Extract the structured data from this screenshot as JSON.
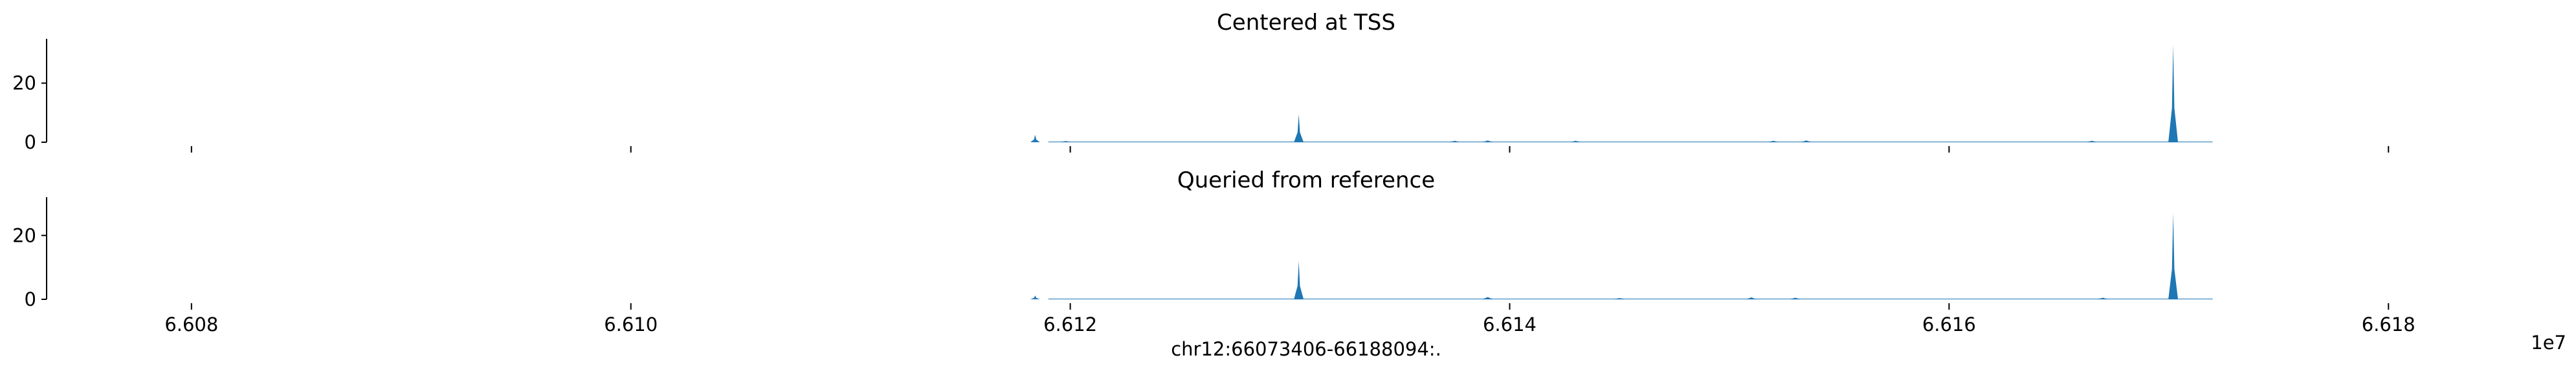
{
  "chart_data": [
    {
      "type": "area",
      "title": "Centered at TSS",
      "color": "#1f77b4",
      "ylim": [
        0,
        35
      ],
      "yticks": [
        0,
        20
      ],
      "ytick_labels": [
        "0",
        "20"
      ],
      "xlim": [
        66073406,
        66188094
      ],
      "xticks": [
        66080000,
        66100000,
        66120000,
        66140000,
        66160000,
        66180000
      ],
      "xtick_labels": [],
      "show_bottom_spine": false,
      "peaks": [
        {
          "x": 66118400,
          "y": 2.5
        },
        {
          "x": 66130400,
          "y": 9.5
        },
        {
          "x": 66170200,
          "y": 33
        }
      ],
      "baseline_noise": [
        {
          "x": 66119800,
          "y": 0.4
        },
        {
          "x": 66137500,
          "y": 0.5
        },
        {
          "x": 66139000,
          "y": 0.6
        },
        {
          "x": 66143000,
          "y": 0.5
        },
        {
          "x": 66152000,
          "y": 0.5
        },
        {
          "x": 66153500,
          "y": 0.6
        },
        {
          "x": 66166500,
          "y": 0.5
        }
      ]
    },
    {
      "type": "area",
      "title": "Queried from reference",
      "color": "#1f77b4",
      "ylim": [
        0,
        32
      ],
      "yticks": [
        0,
        20
      ],
      "ytick_labels": [
        "0",
        "20"
      ],
      "xlim": [
        66073406,
        66188094
      ],
      "xticks": [
        66080000,
        66100000,
        66120000,
        66140000,
        66160000,
        66180000
      ],
      "xtick_labels": [
        "6.608",
        "6.610",
        "6.612",
        "6.614",
        "6.616",
        "6.618"
      ],
      "x_offset_label": "1e7",
      "xlabel": "chr12:66073406-66188094:.",
      "show_bottom_spine": false,
      "peaks": [
        {
          "x": 66118400,
          "y": 1.2
        },
        {
          "x": 66130400,
          "y": 12
        },
        {
          "x": 66170200,
          "y": 27
        }
      ],
      "baseline_noise": [
        {
          "x": 66139000,
          "y": 0.7
        },
        {
          "x": 66151000,
          "y": 0.6
        },
        {
          "x": 66153000,
          "y": 0.5
        },
        {
          "x": 66145000,
          "y": 0.4
        },
        {
          "x": 66167000,
          "y": 0.5
        }
      ]
    }
  ]
}
